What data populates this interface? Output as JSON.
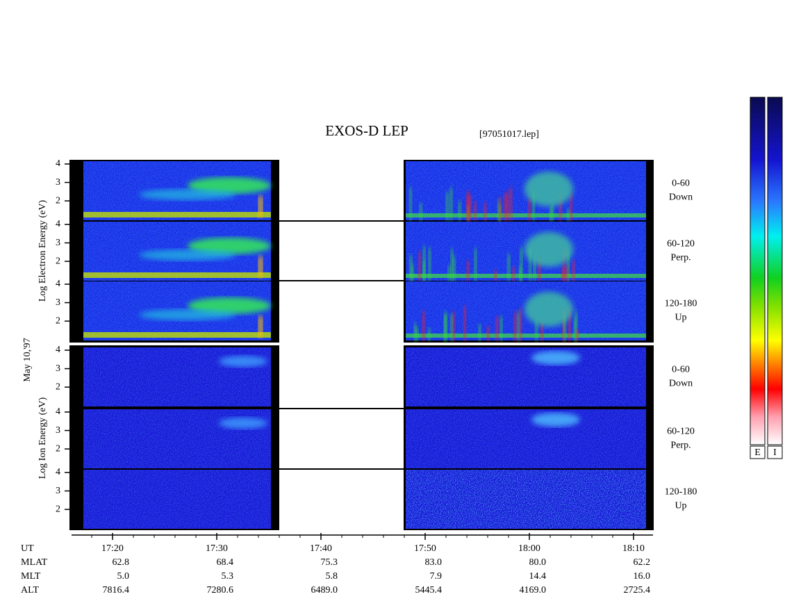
{
  "chart_data": {
    "type": "spectrogram",
    "title": "EXOS-D LEP",
    "file": "[97051017.lep]",
    "date": "May 10,'97",
    "groups": [
      {
        "ylabel": "Log  Electron  Energy (eV)",
        "panels": [
          {
            "angle": "0-60",
            "dir": "Down"
          },
          {
            "angle": "60-120",
            "dir": "Perp."
          },
          {
            "angle": "120-180",
            "dir": "Up"
          }
        ]
      },
      {
        "ylabel": "Log  Ion  Energy (eV)",
        "panels": [
          {
            "angle": "0-60",
            "dir": "Down"
          },
          {
            "angle": "60-120",
            "dir": "Perp."
          },
          {
            "angle": "120-180",
            "dir": "Up"
          }
        ]
      }
    ],
    "ylim": [
      0.95,
      4.15
    ],
    "yticks": [
      2,
      3,
      4
    ],
    "x_name": "UT",
    "x": [
      "17:20",
      "17:30",
      "17:40",
      "17:50",
      "18:00",
      "18:10"
    ],
    "ephemeris": [
      {
        "name": "MLAT",
        "values": [
          "62.8",
          "68.4",
          "75.3",
          "83.0",
          "80.0",
          "62.2"
        ]
      },
      {
        "name": "MLT",
        "values": [
          "5.0",
          "5.3",
          "5.8",
          "7.9",
          "14.4",
          "16.0"
        ]
      },
      {
        "name": "ALT",
        "values": [
          "7816.4",
          "7280.6",
          "6489.0",
          "5445.4",
          "4169.0",
          "2725.4"
        ]
      }
    ],
    "colorbars": [
      "E",
      "I"
    ]
  }
}
